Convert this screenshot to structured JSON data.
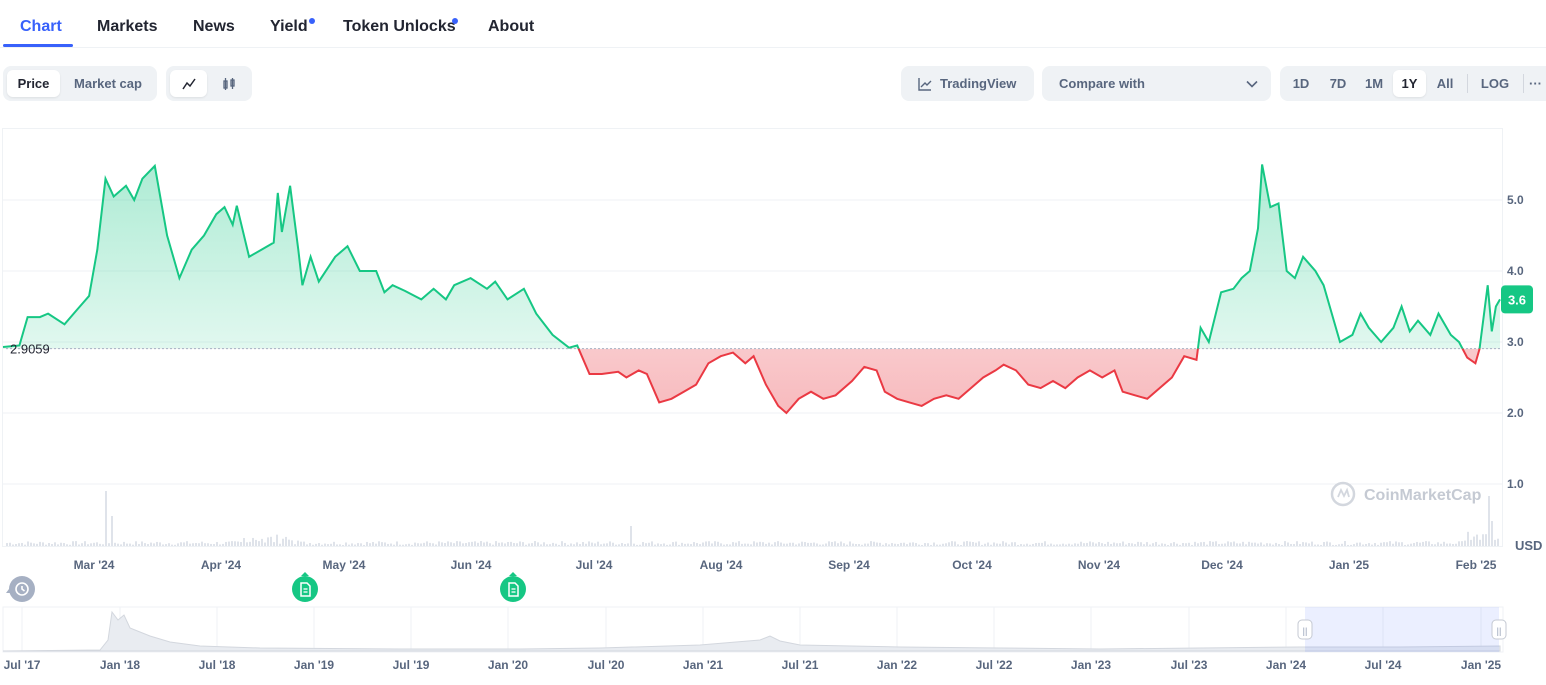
{
  "tabs": [
    {
      "label": "Chart",
      "active": true,
      "dot": false
    },
    {
      "label": "Markets",
      "active": false,
      "dot": false
    },
    {
      "label": "News",
      "active": false,
      "dot": false
    },
    {
      "label": "Yield",
      "active": false,
      "dot": true
    },
    {
      "label": "Token Unlocks",
      "active": false,
      "dot": true
    },
    {
      "label": "About",
      "active": false,
      "dot": false
    }
  ],
  "toolbar": {
    "price_label": "Price",
    "market_cap_label": "Market cap",
    "line_icon": "line-chart-icon",
    "candle_icon": "candlestick-icon",
    "tradingview_label": "TradingView",
    "compare_label": "Compare with",
    "ranges": [
      "1D",
      "7D",
      "1M",
      "1Y",
      "All"
    ],
    "selected_range": "1Y",
    "log_label": "LOG",
    "more_label": "···"
  },
  "colors": {
    "accent": "#3861fb",
    "up": "#16c784",
    "down": "#ea3943",
    "text": "#222531",
    "muted": "#58667e"
  },
  "chart_data": {
    "type": "line",
    "title": "",
    "xlabel": "",
    "ylabel": "",
    "currency_label": "USD",
    "baseline": 2.9059,
    "baseline_label": "2.9059",
    "current_price_label": "3.6",
    "ylim": [
      0,
      6
    ],
    "yticks": [
      "5.0",
      "4.0",
      "3.0",
      "2.0",
      "1.0"
    ],
    "ytick_values": [
      5,
      4,
      3,
      2,
      1
    ],
    "xticks": [
      "Mar '24",
      "Apr '24",
      "May '24",
      "Jun '24",
      "Jul '24",
      "Aug '24",
      "Sep '24",
      "Oct '24",
      "Nov '24",
      "Dec '24",
      "Jan '25",
      "Feb '25"
    ],
    "x_start": "2024-02-08",
    "x_end": "2025-02-07",
    "series": [
      {
        "values": [
          [
            "2024-02-08",
            2.93
          ],
          [
            "2024-02-12",
            2.95
          ],
          [
            "2024-02-14",
            3.35
          ],
          [
            "2024-02-17",
            3.35
          ],
          [
            "2024-02-19",
            3.4
          ],
          [
            "2024-02-23",
            3.25
          ],
          [
            "2024-02-26",
            3.45
          ],
          [
            "2024-02-29",
            3.65
          ],
          [
            "2024-03-02",
            4.3
          ],
          [
            "2024-03-04",
            5.3
          ],
          [
            "2024-03-06",
            5.05
          ],
          [
            "2024-03-09",
            5.2
          ],
          [
            "2024-03-11",
            5.0
          ],
          [
            "2024-03-13",
            5.3
          ],
          [
            "2024-03-16",
            5.48
          ],
          [
            "2024-03-19",
            4.5
          ],
          [
            "2024-03-22",
            3.9
          ],
          [
            "2024-03-25",
            4.3
          ],
          [
            "2024-03-28",
            4.5
          ],
          [
            "2024-03-31",
            4.8
          ],
          [
            "2024-04-02",
            4.9
          ],
          [
            "2024-04-04",
            4.65
          ],
          [
            "2024-04-05",
            4.92
          ],
          [
            "2024-04-08",
            4.2
          ],
          [
            "2024-04-11",
            4.3
          ],
          [
            "2024-04-14",
            4.4
          ],
          [
            "2024-04-15",
            5.1
          ],
          [
            "2024-04-16",
            4.55
          ],
          [
            "2024-04-18",
            5.2
          ],
          [
            "2024-04-20",
            4.3
          ],
          [
            "2024-04-21",
            3.8
          ],
          [
            "2024-04-23",
            4.2
          ],
          [
            "2024-04-25",
            3.85
          ],
          [
            "2024-04-29",
            4.2
          ],
          [
            "2024-05-02",
            4.35
          ],
          [
            "2024-05-05",
            4.0
          ],
          [
            "2024-05-09",
            4.0
          ],
          [
            "2024-05-11",
            3.7
          ],
          [
            "2024-05-13",
            3.8
          ],
          [
            "2024-05-16",
            3.72
          ],
          [
            "2024-05-20",
            3.6
          ],
          [
            "2024-05-23",
            3.75
          ],
          [
            "2024-05-26",
            3.6
          ],
          [
            "2024-05-28",
            3.8
          ],
          [
            "2024-06-01",
            3.9
          ],
          [
            "2024-06-05",
            3.75
          ],
          [
            "2024-06-07",
            3.85
          ],
          [
            "2024-06-10",
            3.6
          ],
          [
            "2024-06-14",
            3.75
          ],
          [
            "2024-06-17",
            3.4
          ],
          [
            "2024-06-21",
            3.1
          ],
          [
            "2024-06-25",
            2.92
          ],
          [
            "2024-06-27",
            2.95
          ],
          [
            "2024-06-30",
            2.55
          ],
          [
            "2024-07-03",
            2.55
          ],
          [
            "2024-07-07",
            2.58
          ],
          [
            "2024-07-09",
            2.5
          ],
          [
            "2024-07-12",
            2.6
          ],
          [
            "2024-07-14",
            2.55
          ],
          [
            "2024-07-17",
            2.15
          ],
          [
            "2024-07-20",
            2.2
          ],
          [
            "2024-07-23",
            2.3
          ],
          [
            "2024-07-26",
            2.4
          ],
          [
            "2024-07-29",
            2.7
          ],
          [
            "2024-08-01",
            2.8
          ],
          [
            "2024-08-04",
            2.85
          ],
          [
            "2024-08-07",
            2.7
          ],
          [
            "2024-08-09",
            2.8
          ],
          [
            "2024-08-12",
            2.4
          ],
          [
            "2024-08-15",
            2.1
          ],
          [
            "2024-08-17",
            2.0
          ],
          [
            "2024-08-20",
            2.2
          ],
          [
            "2024-08-23",
            2.3
          ],
          [
            "2024-08-26",
            2.2
          ],
          [
            "2024-08-29",
            2.25
          ],
          [
            "2024-09-02",
            2.45
          ],
          [
            "2024-09-05",
            2.65
          ],
          [
            "2024-09-08",
            2.6
          ],
          [
            "2024-09-10",
            2.3
          ],
          [
            "2024-09-13",
            2.2
          ],
          [
            "2024-09-16",
            2.15
          ],
          [
            "2024-09-19",
            2.1
          ],
          [
            "2024-09-22",
            2.2
          ],
          [
            "2024-09-25",
            2.25
          ],
          [
            "2024-09-28",
            2.2
          ],
          [
            "2024-10-01",
            2.35
          ],
          [
            "2024-10-04",
            2.5
          ],
          [
            "2024-10-07",
            2.6
          ],
          [
            "2024-10-09",
            2.68
          ],
          [
            "2024-10-12",
            2.6
          ],
          [
            "2024-10-15",
            2.4
          ],
          [
            "2024-10-18",
            2.35
          ],
          [
            "2024-10-21",
            2.45
          ],
          [
            "2024-10-24",
            2.35
          ],
          [
            "2024-10-27",
            2.5
          ],
          [
            "2024-10-30",
            2.6
          ],
          [
            "2024-11-02",
            2.5
          ],
          [
            "2024-11-05",
            2.6
          ],
          [
            "2024-11-07",
            2.3
          ],
          [
            "2024-11-10",
            2.25
          ],
          [
            "2024-11-13",
            2.2
          ],
          [
            "2024-11-16",
            2.35
          ],
          [
            "2024-11-19",
            2.5
          ],
          [
            "2024-11-22",
            2.8
          ],
          [
            "2024-11-25",
            2.75
          ],
          [
            "2024-11-26",
            3.2
          ],
          [
            "2024-11-28",
            3.0
          ],
          [
            "2024-12-01",
            3.7
          ],
          [
            "2024-12-04",
            3.75
          ],
          [
            "2024-12-06",
            3.9
          ],
          [
            "2024-12-08",
            4.0
          ],
          [
            "2024-12-10",
            4.6
          ],
          [
            "2024-12-11",
            5.5
          ],
          [
            "2024-12-13",
            4.9
          ],
          [
            "2024-12-15",
            4.95
          ],
          [
            "2024-12-17",
            4.0
          ],
          [
            "2024-12-19",
            3.9
          ],
          [
            "2024-12-21",
            4.2
          ],
          [
            "2024-12-24",
            4.0
          ],
          [
            "2024-12-26",
            3.8
          ],
          [
            "2024-12-28",
            3.4
          ],
          [
            "2024-12-30",
            3.0
          ],
          [
            "2025-01-02",
            3.1
          ],
          [
            "2025-01-04",
            3.4
          ],
          [
            "2025-01-06",
            3.2
          ],
          [
            "2025-01-09",
            3.0
          ],
          [
            "2025-01-12",
            3.2
          ],
          [
            "2025-01-14",
            3.5
          ],
          [
            "2025-01-16",
            3.15
          ],
          [
            "2025-01-18",
            3.3
          ],
          [
            "2025-01-21",
            3.1
          ],
          [
            "2025-01-23",
            3.4
          ],
          [
            "2025-01-26",
            3.1
          ],
          [
            "2025-01-28",
            3.0
          ],
          [
            "2025-01-30",
            2.78
          ],
          [
            "2025-02-01",
            2.7
          ],
          [
            "2025-02-02",
            2.9
          ],
          [
            "2025-02-04",
            3.8
          ],
          [
            "2025-02-05",
            3.15
          ],
          [
            "2025-02-06",
            3.5
          ],
          [
            "2025-02-07",
            3.6
          ]
        ]
      }
    ],
    "volume_spikes": [
      [
        "2024-03-04",
        55
      ],
      [
        "2024-03-05",
        30
      ],
      [
        "2024-07-10",
        20
      ],
      [
        "2025-02-04",
        50
      ],
      [
        "2025-02-05",
        25
      ]
    ]
  },
  "events": [
    {
      "icon": "history-icon"
    },
    {
      "icon": "document-icon"
    },
    {
      "icon": "document-icon"
    }
  ],
  "watermark": "CoinMarketCap",
  "navigator": {
    "xticks": [
      "Jul '17",
      "Jan '18",
      "Jul '18",
      "Jan '19",
      "Jul '19",
      "Jan '20",
      "Jul '20",
      "Jan '21",
      "Jul '21",
      "Jan '22",
      "Jul '22",
      "Jan '23",
      "Jul '23",
      "Jan '24",
      "Jul '24",
      "Jan '25"
    ],
    "handle_label": "||"
  }
}
